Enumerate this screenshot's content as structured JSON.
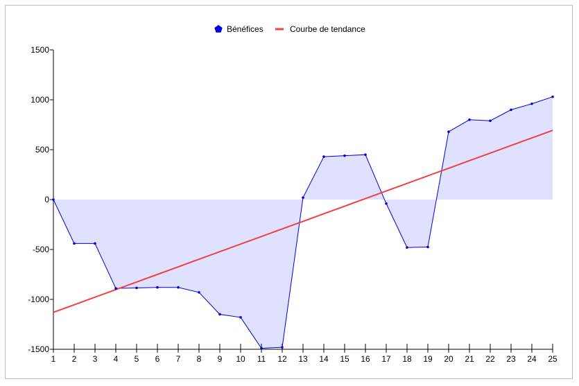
{
  "chart_data": {
    "type": "area",
    "x": [
      1,
      2,
      3,
      4,
      5,
      6,
      7,
      8,
      9,
      10,
      11,
      12,
      13,
      14,
      15,
      16,
      17,
      18,
      19,
      20,
      21,
      22,
      23,
      24,
      25
    ],
    "series": [
      {
        "name": "Bénéfices",
        "type": "area",
        "color": "#0000e0",
        "fill": "#e0e0ff",
        "values": [
          0,
          -440,
          -440,
          -890,
          -885,
          -880,
          -880,
          -930,
          -1150,
          -1180,
          -1490,
          -1480,
          20,
          430,
          440,
          450,
          -40,
          -480,
          -475,
          680,
          800,
          790,
          900,
          960,
          1030
        ]
      },
      {
        "name": "Courbe de tendance",
        "type": "line",
        "color": "#f04040",
        "values": [
          -1130,
          -1054,
          -978,
          -902,
          -826,
          -750,
          -674,
          -598,
          -522,
          -446,
          -370,
          -294,
          -218,
          -142,
          -66,
          10,
          86,
          162,
          238,
          314,
          390,
          466,
          542,
          618,
          694
        ]
      }
    ],
    "ylim": [
      -1500,
      1500
    ],
    "yticks": [
      -1500,
      -1000,
      -500,
      0,
      500,
      1000,
      1500
    ],
    "xticks": [
      1,
      2,
      3,
      4,
      5,
      6,
      7,
      8,
      9,
      10,
      11,
      12,
      13,
      14,
      15,
      16,
      17,
      18,
      19,
      20,
      21,
      22,
      23,
      24,
      25
    ],
    "legend_position": "top-center",
    "grid": false,
    "title": "",
    "xlabel": "",
    "ylabel": ""
  }
}
